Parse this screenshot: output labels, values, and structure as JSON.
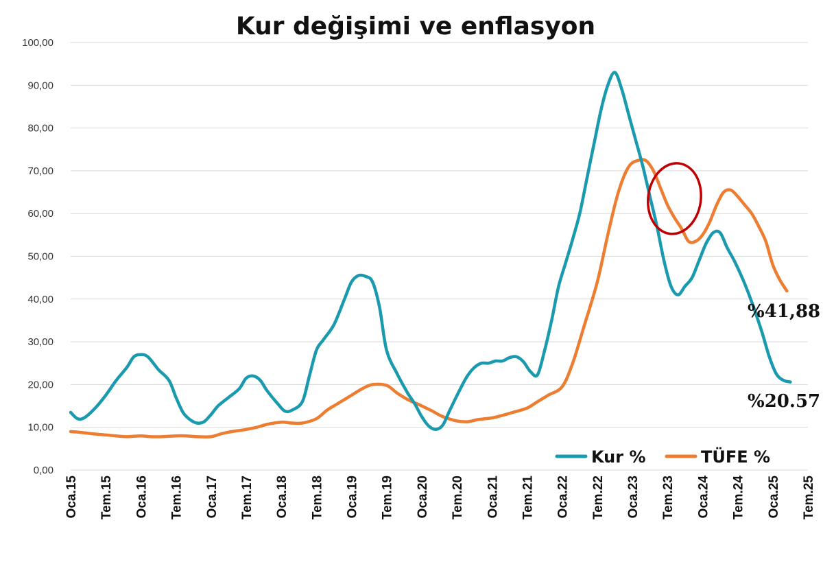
{
  "colors": {
    "kur": "#1a9aae",
    "tufe": "#ed7d31",
    "highlight": "#c00000"
  },
  "chart_data": {
    "type": "line",
    "title": "Kur değişimi ve enflasyon",
    "xlabel": "",
    "ylabel": "",
    "ylim": [
      0,
      100
    ],
    "y_ticks": [
      "0,00",
      "10,00",
      "20,00",
      "30,00",
      "40,00",
      "50,00",
      "60,00",
      "70,00",
      "80,00",
      "90,00",
      "100,00"
    ],
    "x_ticks": [
      "Oca.15",
      "Tem.15",
      "Oca.16",
      "Tem.16",
      "Oca.17",
      "Tem.17",
      "Oca.18",
      "Tem.18",
      "Oca.19",
      "Tem.19",
      "Oca.20",
      "Tem.20",
      "Oca.21",
      "Tem.21",
      "Oca.22",
      "Tem.22",
      "Oca.23",
      "Tem.23",
      "Oca.24",
      "Tem.24",
      "Oca.25",
      "Tem.25"
    ],
    "grid": true,
    "legend_position": "bottom-right",
    "series": [
      {
        "name": "Kur %",
        "color_key": "kur",
        "points": [
          [
            0,
            13.5
          ],
          [
            0.2,
            12
          ],
          [
            0.4,
            12.3
          ],
          [
            0.7,
            14.5
          ],
          [
            1,
            17.5
          ],
          [
            1.3,
            21
          ],
          [
            1.6,
            24
          ],
          [
            1.8,
            26.5
          ],
          [
            2,
            27
          ],
          [
            2.2,
            26.5
          ],
          [
            2.5,
            23.5
          ],
          [
            2.8,
            21
          ],
          [
            3,
            17
          ],
          [
            3.2,
            13.5
          ],
          [
            3.4,
            11.8
          ],
          [
            3.6,
            11
          ],
          [
            3.8,
            11.3
          ],
          [
            4,
            13
          ],
          [
            4.2,
            15
          ],
          [
            4.5,
            17
          ],
          [
            4.8,
            19
          ],
          [
            5,
            21.5
          ],
          [
            5.2,
            22
          ],
          [
            5.4,
            21
          ],
          [
            5.6,
            18.5
          ],
          [
            5.9,
            15.5
          ],
          [
            6.1,
            13.8
          ],
          [
            6.3,
            14
          ],
          [
            6.6,
            16
          ],
          [
            6.8,
            22
          ],
          [
            7,
            28
          ],
          [
            7.2,
            30.5
          ],
          [
            7.5,
            34
          ],
          [
            7.8,
            40
          ],
          [
            8,
            44
          ],
          [
            8.2,
            45.5
          ],
          [
            8.4,
            45.3
          ],
          [
            8.6,
            44
          ],
          [
            8.8,
            38
          ],
          [
            9,
            28
          ],
          [
            9.3,
            22.5
          ],
          [
            9.6,
            18
          ],
          [
            9.8,
            15.5
          ],
          [
            10,
            12.5
          ],
          [
            10.2,
            10.3
          ],
          [
            10.4,
            9.5
          ],
          [
            10.6,
            10.5
          ],
          [
            10.8,
            14
          ],
          [
            11.1,
            19
          ],
          [
            11.3,
            22
          ],
          [
            11.5,
            24
          ],
          [
            11.7,
            25
          ],
          [
            11.9,
            25
          ],
          [
            12.1,
            25.5
          ],
          [
            12.3,
            25.5
          ],
          [
            12.5,
            26.3
          ],
          [
            12.7,
            26.5
          ],
          [
            12.9,
            25.3
          ],
          [
            13.1,
            23
          ],
          [
            13.3,
            22.3
          ],
          [
            13.5,
            28
          ],
          [
            13.7,
            35
          ],
          [
            13.9,
            43
          ],
          [
            14.1,
            48.5
          ],
          [
            14.3,
            54
          ],
          [
            14.5,
            60
          ],
          [
            14.7,
            68
          ],
          [
            14.9,
            76
          ],
          [
            15.1,
            84
          ],
          [
            15.3,
            90
          ],
          [
            15.5,
            93
          ],
          [
            15.7,
            89
          ],
          [
            15.9,
            83
          ],
          [
            16.1,
            77
          ],
          [
            16.3,
            71
          ],
          [
            16.5,
            64
          ],
          [
            16.7,
            57
          ],
          [
            16.9,
            49
          ],
          [
            17.1,
            43
          ],
          [
            17.3,
            41
          ],
          [
            17.5,
            43
          ],
          [
            17.7,
            45
          ],
          [
            17.9,
            49
          ],
          [
            18.1,
            53
          ],
          [
            18.3,
            55.5
          ],
          [
            18.5,
            55.5
          ],
          [
            18.7,
            52
          ],
          [
            18.9,
            49
          ],
          [
            19.1,
            45.5
          ],
          [
            19.3,
            41.5
          ],
          [
            19.5,
            37
          ],
          [
            19.7,
            32
          ],
          [
            19.9,
            26.5
          ],
          [
            20.1,
            22.5
          ],
          [
            20.3,
            21
          ],
          [
            20.5,
            20.6
          ]
        ]
      },
      {
        "name": "TÜFE %",
        "color_key": "tufe",
        "points": [
          [
            0,
            9
          ],
          [
            0.3,
            8.8
          ],
          [
            0.6,
            8.5
          ],
          [
            1,
            8.2
          ],
          [
            1.3,
            8
          ],
          [
            1.6,
            7.8
          ],
          [
            2,
            8
          ],
          [
            2.3,
            7.8
          ],
          [
            2.6,
            7.8
          ],
          [
            3,
            8
          ],
          [
            3.3,
            8
          ],
          [
            3.6,
            7.8
          ],
          [
            4,
            7.8
          ],
          [
            4.3,
            8.5
          ],
          [
            4.6,
            9
          ],
          [
            5,
            9.5
          ],
          [
            5.3,
            10
          ],
          [
            5.6,
            10.7
          ],
          [
            6,
            11.2
          ],
          [
            6.3,
            11
          ],
          [
            6.6,
            11
          ],
          [
            7,
            12
          ],
          [
            7.3,
            14
          ],
          [
            7.6,
            15.5
          ],
          [
            8,
            17.5
          ],
          [
            8.3,
            19
          ],
          [
            8.6,
            20
          ],
          [
            9,
            19.8
          ],
          [
            9.3,
            18
          ],
          [
            9.6,
            16.5
          ],
          [
            10,
            15
          ],
          [
            10.3,
            13.8
          ],
          [
            10.6,
            12.5
          ],
          [
            11,
            11.5
          ],
          [
            11.3,
            11.3
          ],
          [
            11.6,
            11.8
          ],
          [
            12,
            12.2
          ],
          [
            12.3,
            12.8
          ],
          [
            12.6,
            13.5
          ],
          [
            13,
            14.5
          ],
          [
            13.3,
            16
          ],
          [
            13.6,
            17.5
          ],
          [
            14,
            19.5
          ],
          [
            14.3,
            25
          ],
          [
            14.6,
            33
          ],
          [
            15,
            44
          ],
          [
            15.3,
            55
          ],
          [
            15.6,
            65
          ],
          [
            15.9,
            71
          ],
          [
            16.2,
            72.5
          ],
          [
            16.4,
            72.3
          ],
          [
            16.6,
            70
          ],
          [
            16.8,
            66
          ],
          [
            17,
            62
          ],
          [
            17.2,
            59
          ],
          [
            17.4,
            56.5
          ],
          [
            17.6,
            53.5
          ],
          [
            17.8,
            53.5
          ],
          [
            18,
            55
          ],
          [
            18.2,
            58
          ],
          [
            18.4,
            62
          ],
          [
            18.6,
            65
          ],
          [
            18.8,
            65.5
          ],
          [
            19,
            64
          ],
          [
            19.2,
            62
          ],
          [
            19.4,
            60
          ],
          [
            19.6,
            57
          ],
          [
            19.8,
            53.5
          ],
          [
            20,
            48
          ],
          [
            20.2,
            44.5
          ],
          [
            20.4,
            41.88
          ]
        ]
      }
    ],
    "annotations": [
      {
        "text": "%41,88",
        "series": "TÜFE %",
        "value": 41.88
      },
      {
        "text": "%20.57",
        "series": "Kur %",
        "value": 20.57
      }
    ],
    "highlight": {
      "shape": "ellipse",
      "center": [
        17.2,
        63.5
      ],
      "rx_units": 0.75,
      "ry_units": 8.3
    }
  }
}
